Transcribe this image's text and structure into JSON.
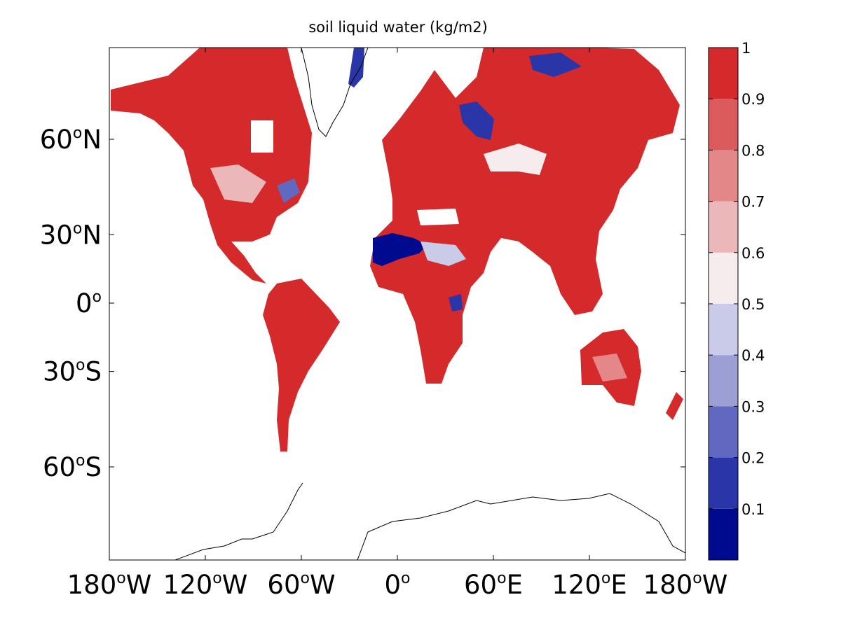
{
  "title": "soil liquid water (kg/m2)",
  "map": {
    "projection": "mercator",
    "lon_range": [
      -180,
      180
    ],
    "lat_ticks": [
      {
        "value": 60,
        "num": "60",
        "hemi": "N"
      },
      {
        "value": 30,
        "num": "30",
        "hemi": "N"
      },
      {
        "value": 0,
        "num": "0",
        "hemi": ""
      },
      {
        "value": -30,
        "num": "30",
        "hemi": "S"
      },
      {
        "value": -60,
        "num": "60",
        "hemi": "S"
      }
    ],
    "lon_ticks": [
      {
        "value": -180,
        "num": "180",
        "hemi": "W"
      },
      {
        "value": -120,
        "num": "120",
        "hemi": "W"
      },
      {
        "value": -60,
        "num": "60",
        "hemi": "W"
      },
      {
        "value": 0,
        "num": "0",
        "hemi": ""
      },
      {
        "value": 60,
        "num": "60",
        "hemi": "E"
      },
      {
        "value": 120,
        "num": "120",
        "hemi": "E"
      },
      {
        "value": 180,
        "num": "180",
        "hemi": "W"
      }
    ],
    "degree_symbol": "o"
  },
  "colorbar": {
    "levels": [
      0.1,
      0.2,
      0.3,
      0.4,
      0.5,
      0.6,
      0.7,
      0.8,
      0.9,
      1
    ],
    "tick_labels": [
      "0.1",
      "0.2",
      "0.3",
      "0.4",
      "0.5",
      "0.6",
      "0.7",
      "0.8",
      "0.9",
      "1"
    ],
    "colors": [
      "#000a8f",
      "#2a36a8",
      "#6168bf",
      "#9b9fd4",
      "#c9cbe8",
      "#f6eced",
      "#ecb7b8",
      "#e38788",
      "#db5a5b",
      "#d42a2b"
    ]
  },
  "colors": {
    "land_wet": "#d42a2b",
    "coast": "#000000",
    "frame": "#000000"
  }
}
